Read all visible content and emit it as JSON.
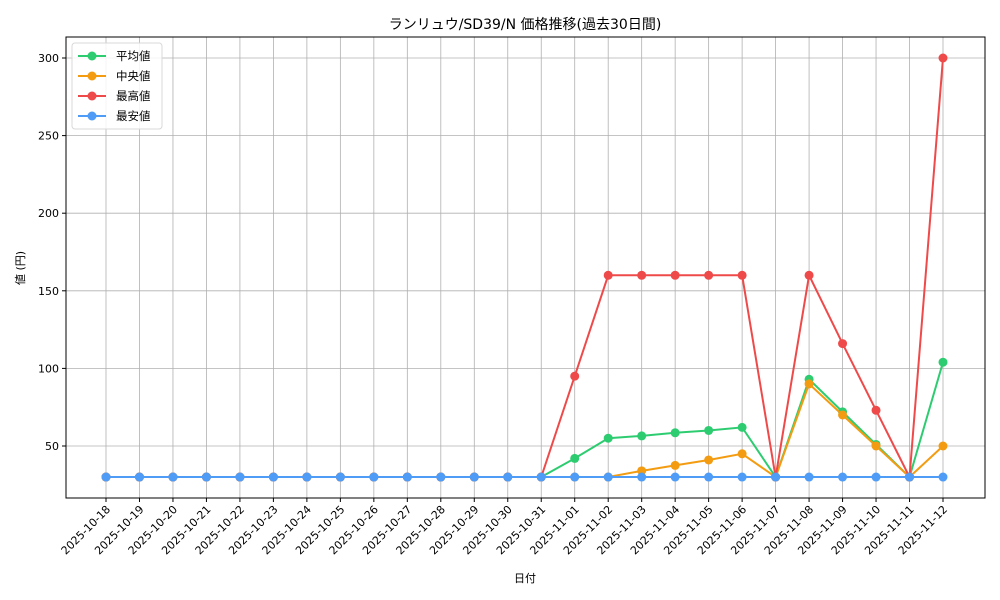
{
  "chart_data": {
    "type": "line",
    "title": "ランリュウ/SD39/N 価格推移(過去30日間)",
    "xlabel": "日付",
    "ylabel": "値 (円)",
    "ylim": [
      17,
      313
    ],
    "yticks": [
      50,
      100,
      150,
      200,
      250,
      300
    ],
    "grid": true,
    "legend_position": "upper left",
    "x": [
      "2025-10-18",
      "2025-10-19",
      "2025-10-20",
      "2025-10-21",
      "2025-10-22",
      "2025-10-23",
      "2025-10-24",
      "2025-10-25",
      "2025-10-26",
      "2025-10-27",
      "2025-10-28",
      "2025-10-29",
      "2025-10-30",
      "2025-10-31",
      "2025-11-01",
      "2025-11-02",
      "2025-11-03",
      "2025-11-04",
      "2025-11-05",
      "2025-11-06",
      "2025-11-07",
      "2025-11-08",
      "2025-11-09",
      "2025-11-10",
      "2025-11-11",
      "2025-11-12"
    ],
    "series": [
      {
        "name": "平均値",
        "color": "#2ecc71",
        "values": [
          30,
          30,
          30,
          30,
          30,
          30,
          30,
          30,
          30,
          30,
          30,
          30,
          30,
          30,
          42,
          55,
          56.5,
          58.5,
          60,
          62,
          30,
          93,
          72,
          51,
          30,
          104
        ]
      },
      {
        "name": "中央値",
        "color": "#f39c12",
        "values": [
          30,
          30,
          30,
          30,
          30,
          30,
          30,
          30,
          30,
          30,
          30,
          30,
          30,
          30,
          30,
          30,
          34,
          37.5,
          41,
          45,
          30,
          90,
          70,
          50,
          30,
          50
        ]
      },
      {
        "name": "最高値",
        "color": "#ef4a4a",
        "values": [
          30,
          30,
          30,
          30,
          30,
          30,
          30,
          30,
          30,
          30,
          30,
          30,
          30,
          30,
          95,
          160,
          160,
          160,
          160,
          160,
          30,
          160,
          116,
          73,
          30,
          300
        ]
      },
      {
        "name": "最安値",
        "color": "#4f9cf7",
        "values": [
          30,
          30,
          30,
          30,
          30,
          30,
          30,
          30,
          30,
          30,
          30,
          30,
          30,
          30,
          30,
          30,
          30,
          30,
          30,
          30,
          30,
          30,
          30,
          30,
          30,
          30
        ]
      }
    ]
  }
}
